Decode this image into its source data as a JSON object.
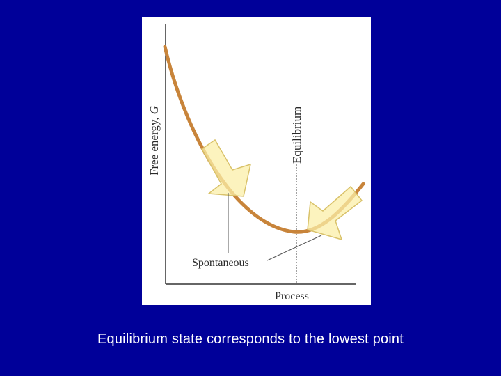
{
  "diagram": {
    "y_axis_label": "Free energy, ",
    "y_axis_symbol": "G",
    "x_axis_label": "Process",
    "equilibrium_label": "Equilibrium",
    "spontaneous_label": "Spontaneous"
  },
  "caption": "Equilibrium state corresponds to the lowest point",
  "colors": {
    "background": "#000099",
    "curve": "#c8843a",
    "arrow_fill": "#fbefa8",
    "arrow_stroke": "#d9c26a",
    "caption_text": "#ffffff"
  }
}
